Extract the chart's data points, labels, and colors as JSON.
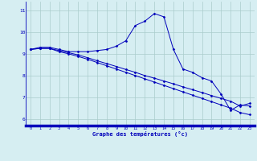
{
  "title": "",
  "xlabel": "Graphe des températures (°c)",
  "ylabel": "",
  "background_color": "#d6eef2",
  "line_color": "#0000bb",
  "grid_color": "#aacccc",
  "xlim": [
    -0.5,
    23.5
  ],
  "ylim": [
    5.7,
    11.4
  ],
  "yticks": [
    6,
    7,
    8,
    9,
    10,
    11
  ],
  "xticks": [
    0,
    1,
    2,
    3,
    4,
    5,
    6,
    7,
    8,
    9,
    10,
    11,
    12,
    13,
    14,
    15,
    16,
    17,
    18,
    19,
    20,
    21,
    22,
    23
  ],
  "line1_x": [
    0,
    1,
    2,
    3,
    4,
    5,
    6,
    7,
    8,
    9,
    10,
    11,
    12,
    13,
    14,
    15,
    16,
    17,
    18,
    19,
    20,
    21,
    22,
    23
  ],
  "line1_y": [
    9.2,
    9.3,
    9.3,
    9.2,
    9.1,
    9.1,
    9.1,
    9.15,
    9.2,
    9.35,
    9.6,
    10.3,
    10.5,
    10.85,
    10.7,
    9.2,
    8.3,
    8.15,
    7.9,
    7.75,
    7.15,
    6.4,
    6.65,
    6.6
  ],
  "line2_x": [
    0,
    1,
    2,
    3,
    4,
    5,
    6,
    7,
    8,
    9,
    10,
    11,
    12,
    13,
    14,
    15,
    16,
    17,
    18,
    19,
    20,
    21,
    22,
    23
  ],
  "line2_y": [
    9.2,
    9.25,
    9.25,
    9.1,
    9.0,
    8.88,
    8.75,
    8.6,
    8.45,
    8.3,
    8.15,
    8.0,
    7.85,
    7.7,
    7.55,
    7.4,
    7.25,
    7.1,
    6.95,
    6.8,
    6.65,
    6.5,
    6.3,
    6.2
  ],
  "line3_x": [
    0,
    1,
    2,
    3,
    4,
    5,
    6,
    7,
    8,
    9,
    10,
    11,
    12,
    13,
    14,
    15,
    16,
    17,
    18,
    19,
    20,
    21,
    22,
    23
  ],
  "line3_y": [
    9.2,
    9.25,
    9.25,
    9.15,
    9.05,
    8.95,
    8.82,
    8.68,
    8.55,
    8.42,
    8.28,
    8.15,
    8.0,
    7.88,
    7.75,
    7.62,
    7.48,
    7.35,
    7.22,
    7.08,
    6.95,
    6.82,
    6.6,
    6.72
  ]
}
